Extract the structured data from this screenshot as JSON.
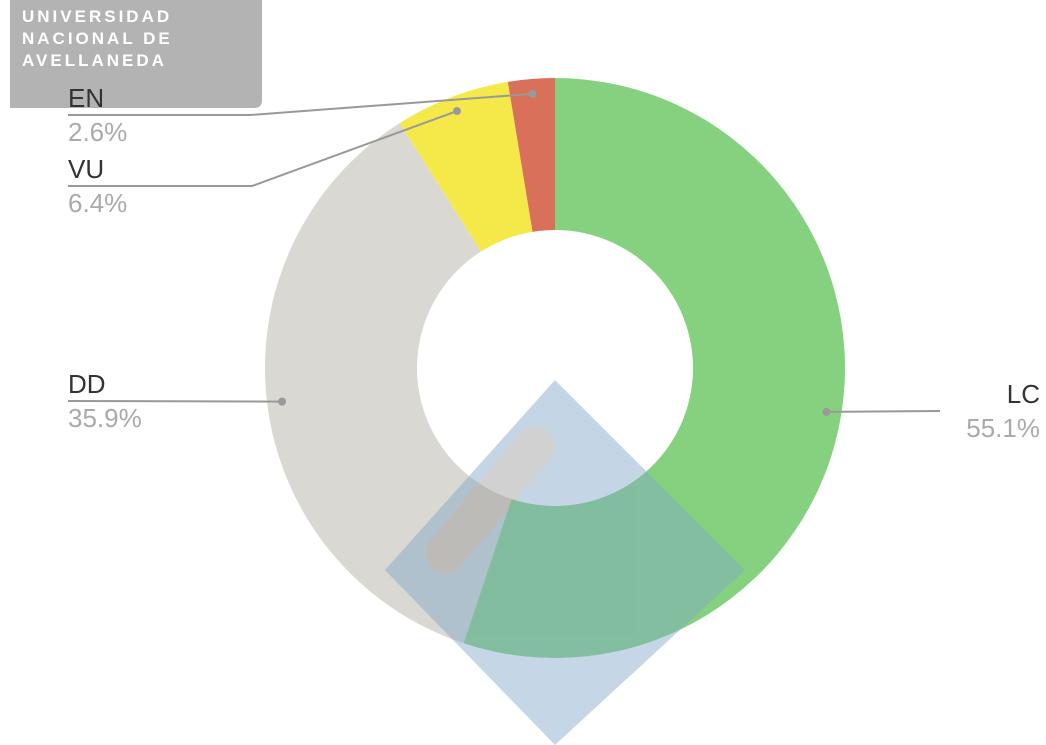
{
  "watermark_text": [
    "UNIVERSIDAD",
    "NACIONAL DE",
    "AVELLANEDA"
  ],
  "chart_data": {
    "type": "donut",
    "categories": [
      "LC",
      "DD",
      "VU",
      "EN"
    ],
    "values": [
      55.1,
      35.9,
      6.4,
      2.6
    ],
    "value_labels": [
      "55.1%",
      "35.9%",
      "6.4%",
      "2.6%"
    ],
    "colors": [
      "#86d17f",
      "#d9d8d2",
      "#f5e94a",
      "#d9705a"
    ]
  }
}
